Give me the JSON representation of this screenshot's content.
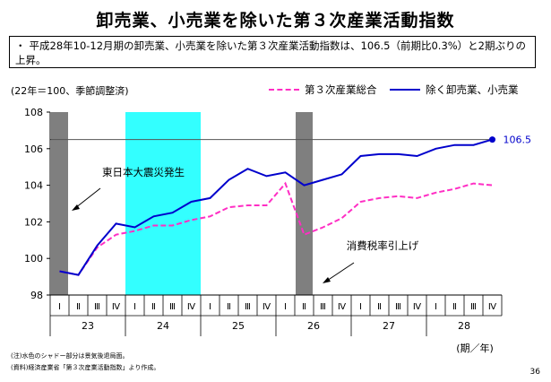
{
  "title": "卸売業、小売業を除いた第３次産業活動指数",
  "summary": {
    "bullet": "・",
    "text": "平成28年10-12月期の卸売業、小売業を除いた第３次産業活動指数は、106.5（前期比0.3%）と2期ぶりの上昇。"
  },
  "unit_label": "(22年＝100、季節調整済)",
  "period_label": "(期／年)",
  "notes": [
    "(注)水色のシャドー部分は景気後退局面。",
    "(資料)経済産業省「第３次産業活動指数」より作成。"
  ],
  "page_number": "36",
  "colors": {
    "total": "#ff2ec4",
    "excluding": "#0000cc",
    "recession_shade": "#33ffff",
    "event_bar": "#7f7f7f"
  },
  "chart_data": {
    "type": "line",
    "title": "卸売業、小売業を除いた第３次産業活動指数",
    "ylim": [
      98,
      108
    ],
    "yticks": [
      98,
      100,
      102,
      104,
      106,
      108
    ],
    "quarters": [
      "Ⅰ",
      "Ⅱ",
      "Ⅲ",
      "Ⅳ",
      "Ⅰ",
      "Ⅱ",
      "Ⅲ",
      "Ⅳ",
      "Ⅰ",
      "Ⅱ",
      "Ⅲ",
      "Ⅳ",
      "Ⅰ",
      "Ⅱ",
      "Ⅲ",
      "Ⅳ",
      "Ⅰ",
      "Ⅱ",
      "Ⅲ",
      "Ⅳ",
      "Ⅰ",
      "Ⅱ",
      "Ⅲ",
      "Ⅳ"
    ],
    "years": [
      {
        "label": "23",
        "start": 0,
        "end": 3
      },
      {
        "label": "24",
        "start": 4,
        "end": 7
      },
      {
        "label": "25",
        "start": 8,
        "end": 11
      },
      {
        "label": "26",
        "start": 12,
        "end": 15
      },
      {
        "label": "27",
        "start": 16,
        "end": 19
      },
      {
        "label": "28",
        "start": 20,
        "end": 23
      }
    ],
    "series": [
      {
        "name": "第３次産業総合",
        "style": "dashed",
        "values": [
          99.3,
          99.1,
          100.6,
          101.3,
          101.5,
          101.8,
          101.8,
          102.1,
          102.3,
          102.8,
          102.9,
          102.9,
          104.1,
          101.3,
          101.7,
          102.2,
          103.1,
          103.3,
          103.4,
          103.3,
          103.6,
          103.8,
          104.1,
          104.0
        ]
      },
      {
        "name": "除く卸売業、小売業",
        "style": "solid",
        "values": [
          99.3,
          99.1,
          100.7,
          101.9,
          101.7,
          102.3,
          102.5,
          103.1,
          103.3,
          104.3,
          104.9,
          104.5,
          104.7,
          104.0,
          104.3,
          104.6,
          105.6,
          105.7,
          105.7,
          105.6,
          106.0,
          106.2,
          106.2,
          106.5
        ]
      }
    ],
    "reference_line": {
      "value": 106.5
    },
    "end_label": "106.5",
    "recession_shading": {
      "from": 4,
      "to": 7
    },
    "event_bars": [
      {
        "index": 0,
        "label": "東日本大震災発生"
      },
      {
        "index": 13,
        "label": "消費税率引上げ"
      }
    ]
  }
}
